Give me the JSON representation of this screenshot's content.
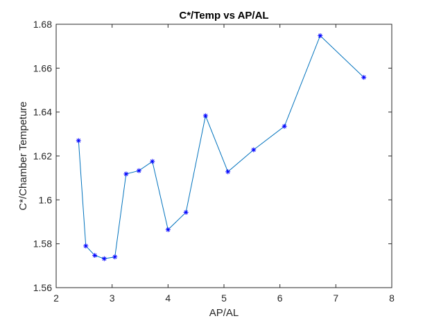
{
  "chart_data": {
    "type": "line",
    "title": "C*/Temp vs AP/AL",
    "xlabel": "AP/AL",
    "ylabel": "C*/Chamber Tempeture",
    "xlim": [
      2,
      8
    ],
    "ylim": [
      1.56,
      1.68
    ],
    "xticks": [
      2,
      3,
      4,
      5,
      6,
      7,
      8
    ],
    "yticks": [
      1.56,
      1.58,
      1.6,
      1.62,
      1.64,
      1.66,
      1.68
    ],
    "xtick_labels": [
      "2",
      "3",
      "4",
      "5",
      "6",
      "7",
      "8"
    ],
    "ytick_labels": [
      "1.56",
      "1.58",
      "1.6",
      "1.62",
      "1.64",
      "1.66",
      "1.68"
    ],
    "grid": false,
    "marker": "asterisk",
    "line_color": "#0072BD",
    "marker_color": "#0000FF",
    "series": [
      {
        "x": [
          2.4,
          2.53,
          2.69,
          2.86,
          3.05,
          3.25,
          3.48,
          3.72,
          4.0,
          4.32,
          4.67,
          5.07,
          5.53,
          6.08,
          6.72,
          7.5
        ],
        "y": [
          1.627,
          1.579,
          1.5747,
          1.5732,
          1.574,
          1.6118,
          1.6133,
          1.6175,
          1.5864,
          1.5943,
          1.6383,
          1.6128,
          1.6228,
          1.6335,
          1.6748,
          1.6558
        ]
      }
    ]
  }
}
